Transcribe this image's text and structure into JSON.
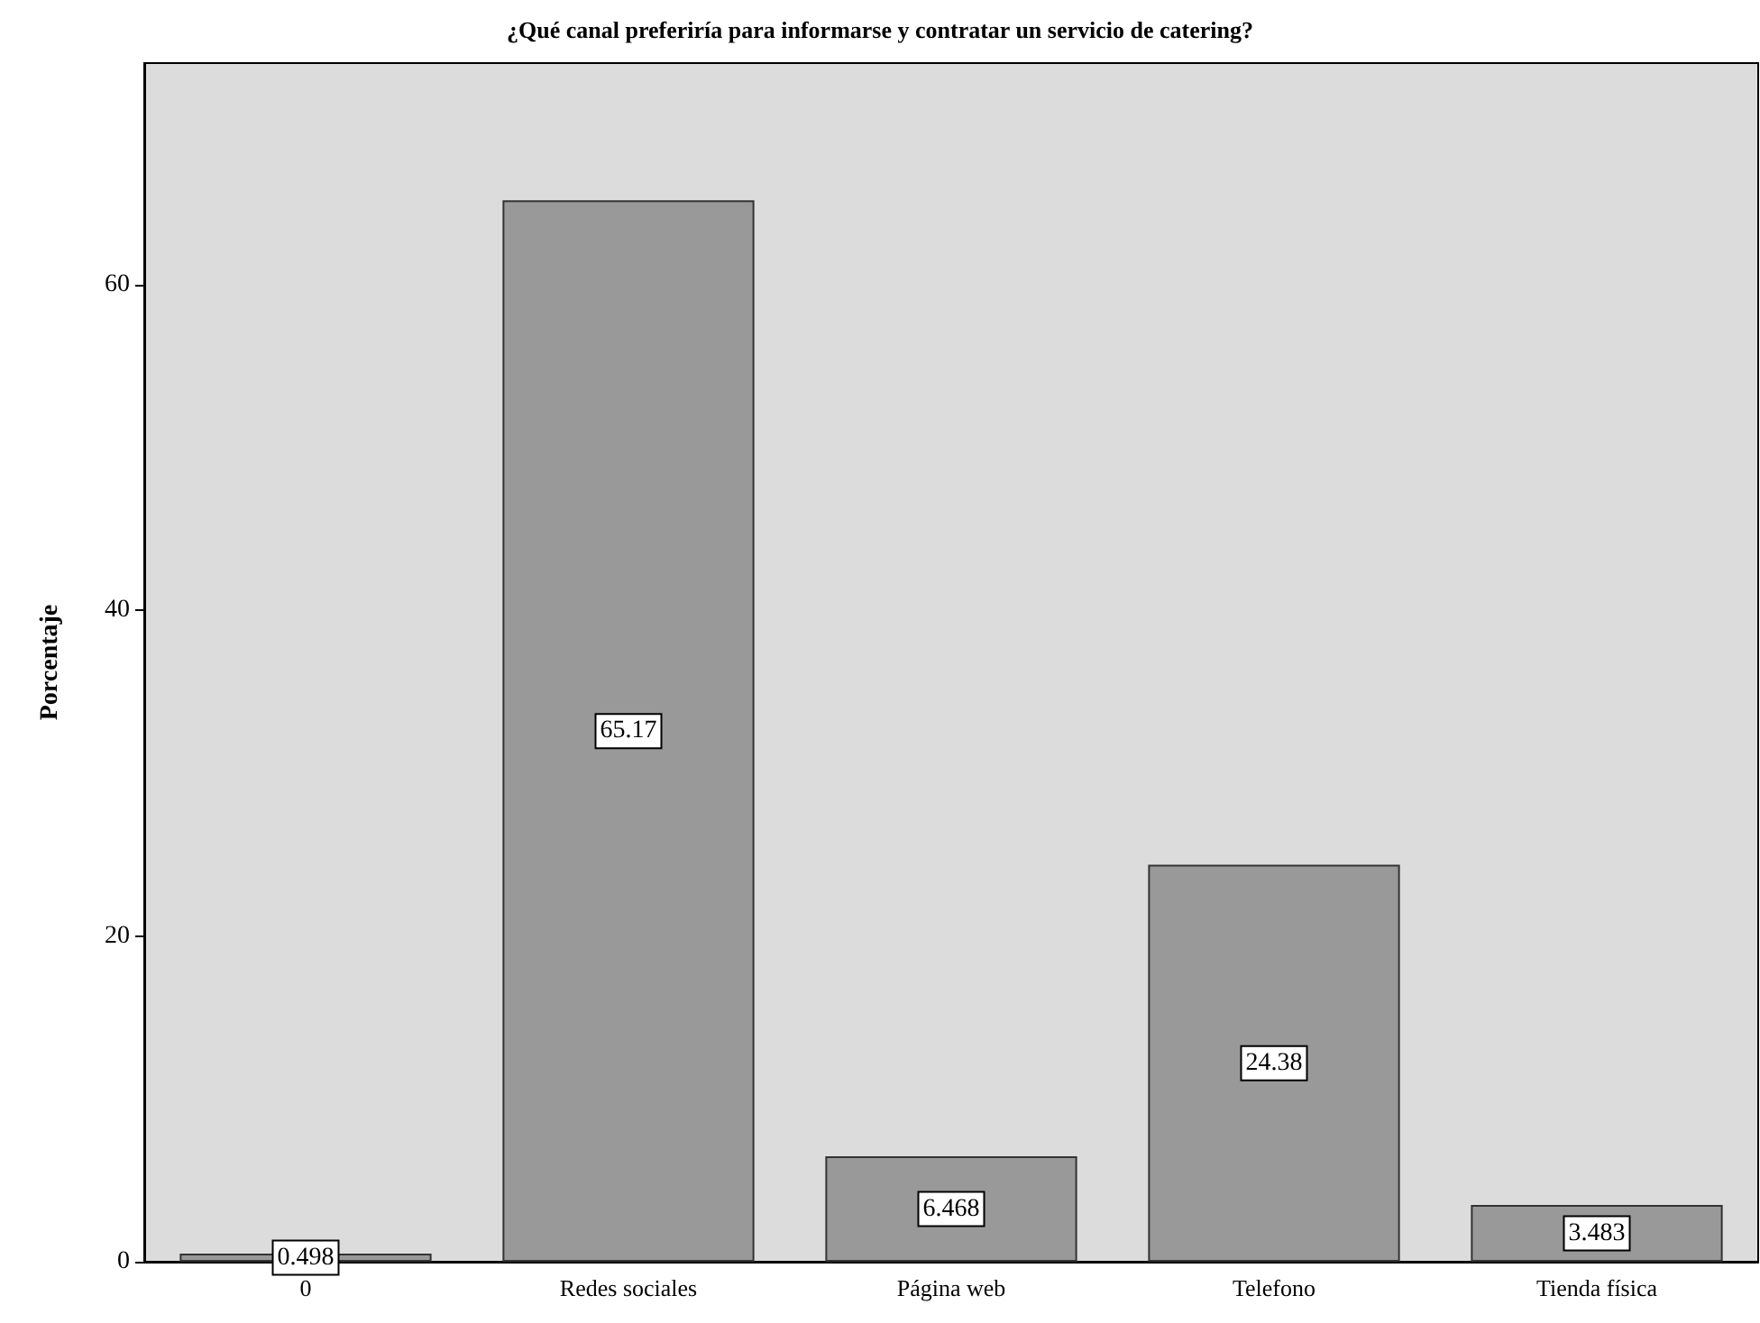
{
  "chart_data": {
    "type": "bar",
    "title": "¿Qué canal preferiría para informarse y contratar un servicio de catering?",
    "ylabel": "Porcentaje",
    "categories": [
      "0",
      "Redes sociales",
      "Página web",
      "Telefono",
      "Tienda física"
    ],
    "values": [
      0.498,
      65.17,
      6.468,
      24.38,
      3.483
    ],
    "value_labels": [
      "0.498",
      "65.17",
      "6.468",
      "24.38",
      "3.483"
    ],
    "color": "#999999",
    "ylim": [
      0,
      73.6
    ],
    "yticks": [
      0,
      20,
      40,
      60
    ],
    "grid": false
  }
}
